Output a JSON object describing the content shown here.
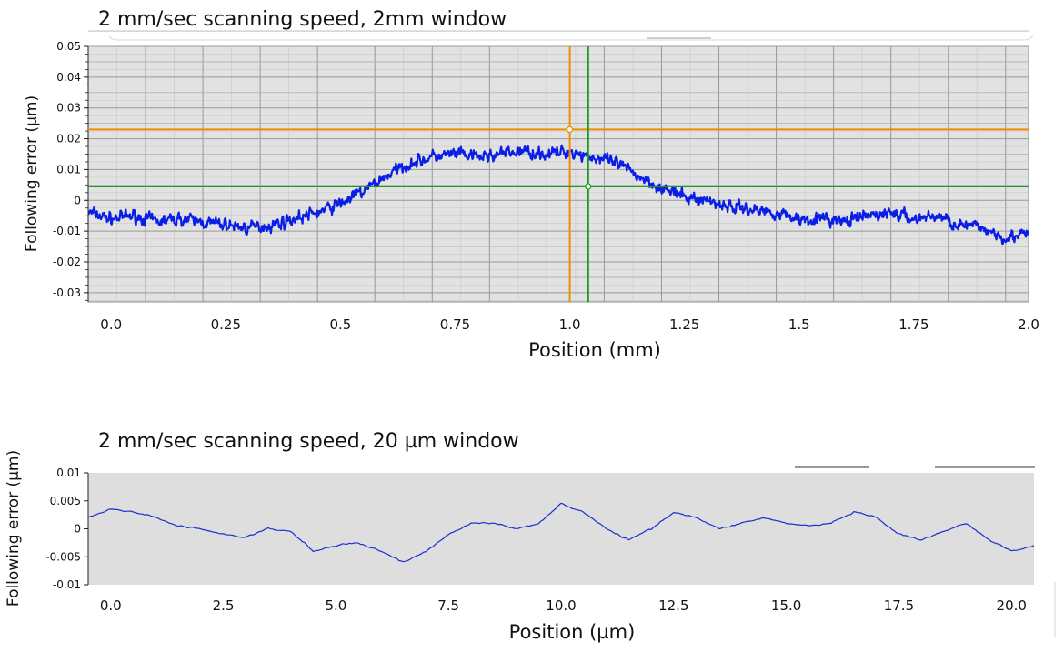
{
  "chart_data": [
    {
      "type": "line",
      "title": "2 mm/sec scanning speed, 2mm window",
      "xlabel": "Position (mm)",
      "ylabel": "Following error (µm)",
      "xlim": [
        -0.05,
        2.0
      ],
      "ylim": [
        -0.033,
        0.05
      ],
      "x_ticks": [
        "0.0",
        "0.25",
        "0.5",
        "0.75",
        "1.0",
        "1.25",
        "1.5",
        "1.75",
        "2.0"
      ],
      "y_ticks": [
        "0.05",
        "0.04",
        "0.03",
        "0.02",
        "0.01",
        "0",
        "-0.01",
        "-0.02",
        "-0.03"
      ],
      "grid": true,
      "line_color": "#0a1ee8",
      "series": [
        {
          "x": [
            -0.05,
            0.0,
            0.05,
            0.1,
            0.15,
            0.2,
            0.25,
            0.3,
            0.35,
            0.4,
            0.45,
            0.5,
            0.55,
            0.6,
            0.65,
            0.7,
            0.75,
            0.8,
            0.85,
            0.9,
            0.95,
            1.0,
            1.05,
            1.1,
            1.15,
            1.2,
            1.25,
            1.3,
            1.35,
            1.4,
            1.45,
            1.5,
            1.55,
            1.6,
            1.65,
            1.7,
            1.75,
            1.8,
            1.85,
            1.9,
            1.95,
            2.0
          ],
          "y": [
            -0.004,
            -0.006,
            -0.005,
            -0.007,
            -0.006,
            -0.007,
            -0.008,
            -0.009,
            -0.008,
            -0.006,
            -0.004,
            -0.001,
            0.003,
            0.008,
            0.012,
            0.014,
            0.015,
            0.014,
            0.015,
            0.016,
            0.015,
            0.016,
            0.014,
            0.012,
            0.008,
            0.004,
            0.001,
            0.0,
            -0.002,
            -0.003,
            -0.004,
            -0.006,
            -0.006,
            -0.007,
            -0.005,
            -0.004,
            -0.006,
            -0.005,
            -0.008,
            -0.009,
            -0.012,
            -0.011
          ]
        }
      ],
      "cursors": [
        {
          "orientation": "vertical",
          "x": 1.0,
          "color": "#f08c00"
        },
        {
          "orientation": "horizontal",
          "y": 0.023,
          "color": "#f08c00"
        },
        {
          "orientation": "vertical",
          "x": 1.04,
          "color": "#1e9a1e"
        },
        {
          "orientation": "horizontal",
          "y": 0.0045,
          "color": "#1e9a1e"
        }
      ]
    },
    {
      "type": "line",
      "title": "2 mm/sec scanning speed, 20 µm window",
      "xlabel": "Position (µm)",
      "ylabel": "Following error (µm)",
      "xlim": [
        -0.5,
        20.5
      ],
      "ylim": [
        -0.01,
        0.01
      ],
      "x_ticks": [
        "0.0",
        "2.5",
        "5.0",
        "7.5",
        "10.0",
        "12.5",
        "15.0",
        "17.5",
        "20.0"
      ],
      "y_ticks": [
        "0.01",
        "0.005",
        "0",
        "-0.005",
        "-0.01"
      ],
      "grid": false,
      "line_color": "#1a2fd0",
      "series": [
        {
          "x": [
            -0.5,
            0.0,
            0.5,
            1.0,
            1.5,
            2.0,
            2.5,
            3.0,
            3.5,
            4.0,
            4.5,
            5.0,
            5.5,
            6.0,
            6.5,
            7.0,
            7.5,
            8.0,
            8.5,
            9.0,
            9.5,
            10.0,
            10.5,
            11.0,
            11.5,
            12.0,
            12.5,
            13.0,
            13.5,
            14.0,
            14.5,
            15.0,
            15.5,
            16.0,
            16.5,
            17.0,
            17.5,
            18.0,
            18.5,
            19.0,
            19.5,
            20.0,
            20.5
          ],
          "y": [
            0.002,
            0.0035,
            0.003,
            0.002,
            0.0005,
            0.0,
            -0.001,
            -0.0015,
            0.0,
            -0.0005,
            -0.004,
            -0.003,
            -0.0025,
            -0.004,
            -0.006,
            -0.004,
            -0.001,
            0.001,
            0.001,
            0.0,
            0.001,
            0.0045,
            0.003,
            0.0,
            -0.002,
            0.0,
            0.003,
            0.002,
            0.0,
            0.001,
            0.002,
            0.001,
            0.0005,
            0.001,
            0.003,
            0.002,
            -0.001,
            -0.002,
            -0.0005,
            0.001,
            -0.002,
            -0.004,
            -0.003
          ]
        }
      ]
    }
  ]
}
